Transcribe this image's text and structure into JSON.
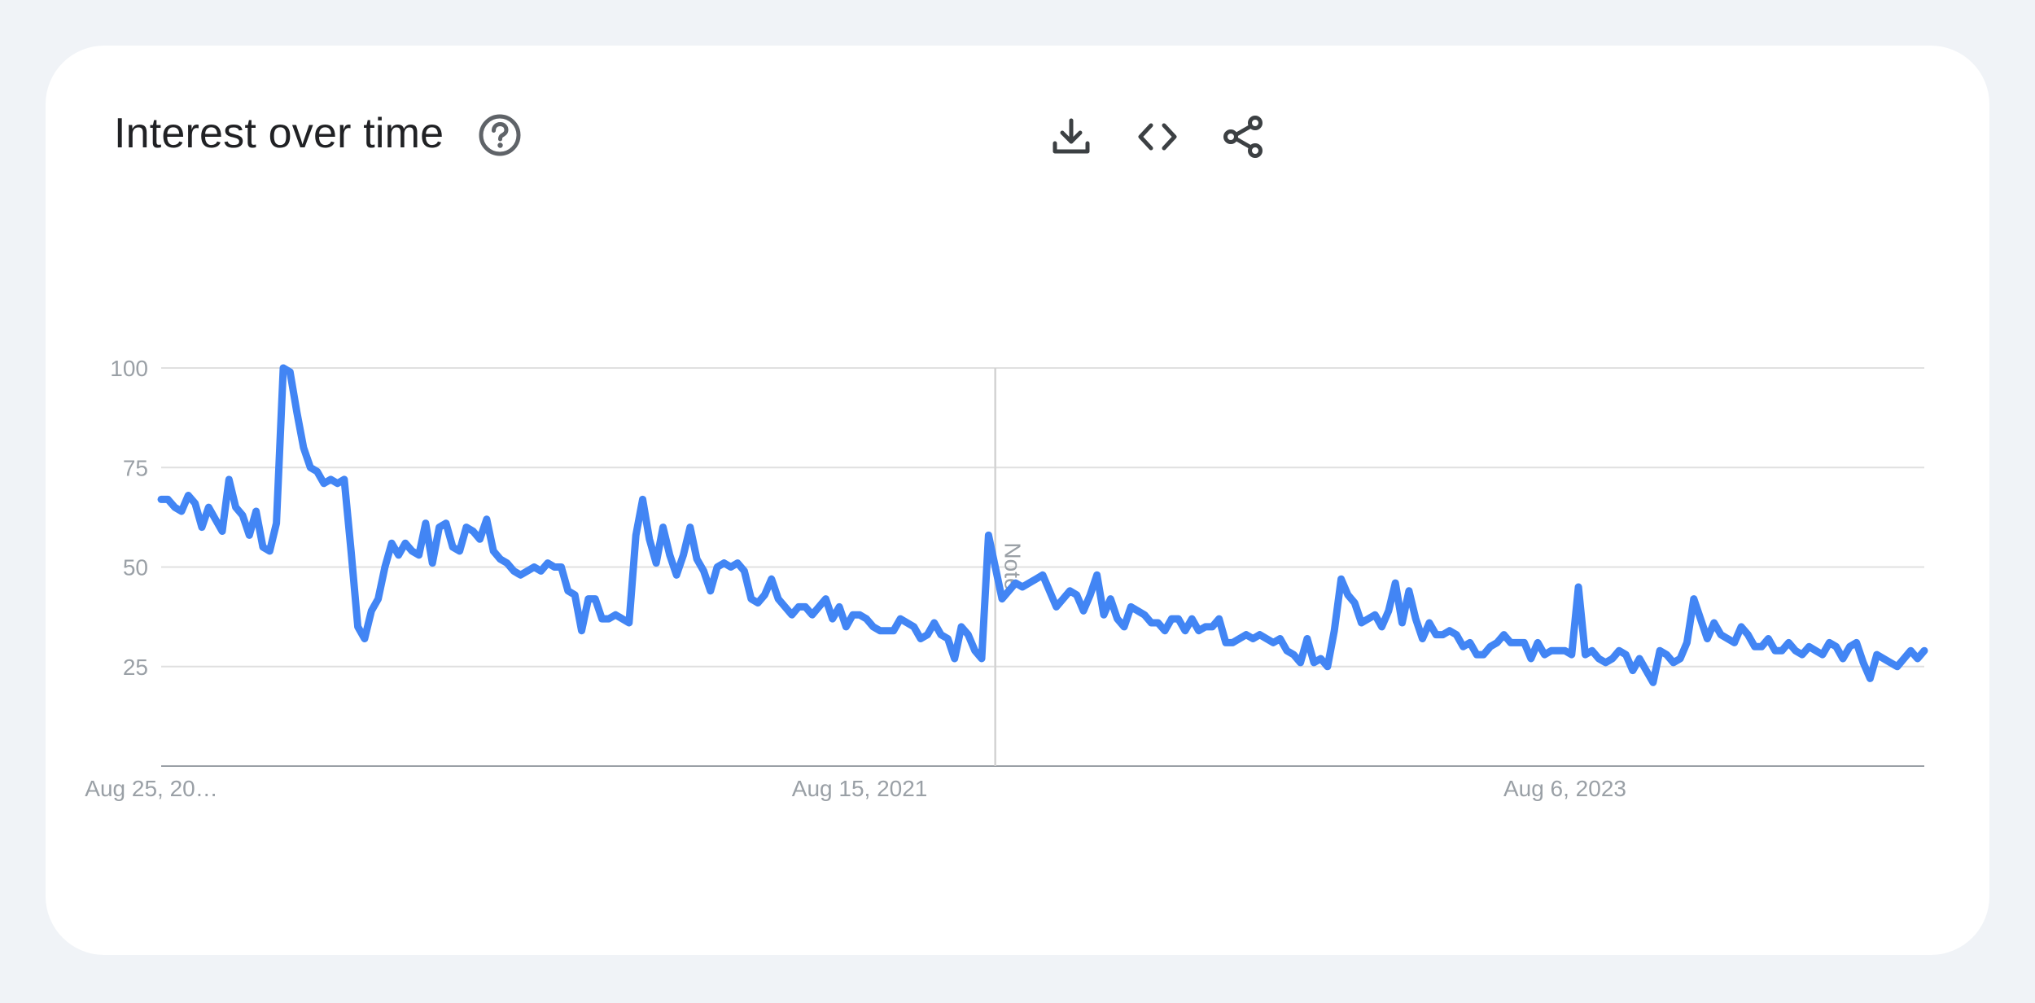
{
  "card": {
    "title": "Interest over time",
    "icons": {
      "help": "help-circle-icon",
      "download": "download-icon",
      "embed": "code-embed-icon",
      "share": "share-icon"
    }
  },
  "chart_data": {
    "type": "line",
    "title": "Interest over time",
    "xlabel": "",
    "ylabel": "",
    "ylim": [
      0,
      100
    ],
    "y_ticks": [
      25,
      50,
      75,
      100
    ],
    "x_tick_labels": [
      {
        "label": "Aug 25, 20…",
        "index": 0
      },
      {
        "label": "Aug 15, 2021",
        "index": 103
      },
      {
        "label": "Aug 6, 2023",
        "index": 207
      }
    ],
    "annotation": {
      "label": "Note",
      "index": 123
    },
    "grid": true,
    "legend": "none",
    "color": "#4285f4",
    "series": [
      {
        "values": [
          67,
          67,
          65,
          64,
          68,
          66,
          60,
          65,
          62,
          59,
          72,
          65,
          63,
          58,
          64,
          55,
          54,
          61,
          100,
          99,
          89,
          80,
          75,
          74,
          71,
          72,
          71,
          72,
          54,
          35,
          32,
          39,
          42,
          50,
          56,
          53,
          56,
          54,
          53,
          61,
          51,
          60,
          61,
          55,
          54,
          60,
          59,
          57,
          62,
          54,
          52,
          51,
          49,
          48,
          49,
          50,
          49,
          51,
          50,
          50,
          44,
          43,
          34,
          42,
          42,
          37,
          37,
          38,
          37,
          36,
          58,
          67,
          57,
          51,
          60,
          53,
          48,
          53,
          60,
          52,
          49,
          44,
          50,
          51,
          50,
          51,
          49,
          42,
          41,
          43,
          47,
          42,
          40,
          38,
          40,
          40,
          38,
          40,
          42,
          37,
          40,
          35,
          38,
          38,
          37,
          35,
          34,
          34,
          34,
          37,
          36,
          35,
          32,
          33,
          36,
          33,
          32,
          27,
          35,
          33,
          29,
          27,
          58,
          50,
          42,
          44,
          46,
          45,
          46,
          47,
          48,
          44,
          40,
          42,
          44,
          43,
          39,
          43,
          48,
          38,
          42,
          37,
          35,
          40,
          39,
          38,
          36,
          36,
          34,
          37,
          37,
          34,
          37,
          34,
          35,
          35,
          37,
          31,
          31,
          32,
          33,
          32,
          33,
          32,
          31,
          32,
          29,
          28,
          26,
          32,
          26,
          27,
          25,
          34,
          47,
          43,
          41,
          36,
          37,
          38,
          35,
          39,
          46,
          36,
          44,
          37,
          32,
          36,
          33,
          33,
          34,
          33,
          30,
          31,
          28,
          28,
          30,
          31,
          33,
          31,
          31,
          31,
          27,
          31,
          28,
          29,
          29,
          29,
          28,
          45,
          28,
          29,
          27,
          26,
          27,
          29,
          28,
          24,
          27,
          24,
          21,
          29,
          28,
          26,
          27,
          31,
          42,
          37,
          32,
          36,
          33,
          32,
          31,
          35,
          33,
          30,
          30,
          32,
          29,
          29,
          31,
          29,
          28,
          30,
          29,
          28,
          31,
          30,
          27,
          30,
          31,
          26,
          22,
          28,
          27,
          26,
          25,
          27,
          29,
          27,
          29
        ]
      }
    ]
  }
}
